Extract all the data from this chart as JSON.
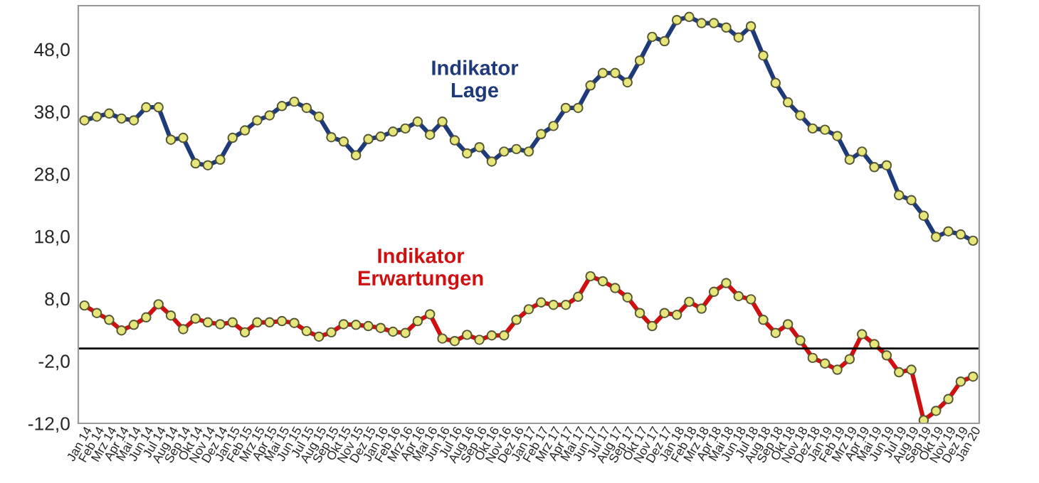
{
  "chart_data": {
    "type": "line",
    "categories": [
      "Jan 14",
      "Feb 14",
      "Mrz 14",
      "Apr 14",
      "Mai 14",
      "Jun 14",
      "Jul 14",
      "Aug 14",
      "Sep 14",
      "Okt 14",
      "Nov 14",
      "Dez 14",
      "Jan 15",
      "Feb 15",
      "Mrz 15",
      "Apr 15",
      "Mai 15",
      "Jun 15",
      "Jul 15",
      "Aug 15",
      "Sep 15",
      "Okt 15",
      "Nov 15",
      "Dez 15",
      "Jan 16",
      "Feb 16",
      "Mrz 16",
      "Apr 16",
      "Mai 16",
      "Jun 16",
      "Jul 16",
      "Aug 16",
      "Sep 16",
      "Okt 16",
      "Nov 16",
      "Dez 16",
      "Jan 17",
      "Feb 17",
      "Mrz 17",
      "Apr 17",
      "Mai 17",
      "Jun 17",
      "Jul 17",
      "Aug 17",
      "Sep 17",
      "Okt 17",
      "Nov 17",
      "Dez 17",
      "Jan 18",
      "Feb 18",
      "Mrz 18",
      "Apr 18",
      "Mai 18",
      "Jun 18",
      "Jul 18",
      "Aug 18",
      "Sep 18",
      "Okt 18",
      "Nov 18",
      "Dez 18",
      "Jan 19",
      "Feb 19",
      "Mrz 19",
      "Apr 19",
      "Mai 19",
      "Jun 19",
      "Jul 19",
      "Aug 19",
      "Sep 19",
      "Okt 19",
      "Nov 19",
      "Dez 19",
      "Jan 20"
    ],
    "series": [
      {
        "name": "Indikator\nLage",
        "color": "#1f3a7a",
        "values": [
          36.6,
          37.2,
          37.7,
          36.9,
          36.6,
          38.7,
          38.7,
          33.5,
          33.8,
          29.7,
          29.4,
          30.3,
          33.8,
          35.0,
          36.6,
          37.4,
          38.9,
          39.6,
          38.6,
          37.2,
          33.9,
          33.2,
          31.0,
          33.6,
          34.0,
          34.8,
          35.3,
          36.4,
          34.3,
          36.4,
          33.4,
          31.3,
          32.3,
          30.0,
          31.6,
          32.0,
          31.6,
          34.4,
          35.7,
          38.6,
          38.6,
          42.2,
          44.2,
          44.2,
          42.7,
          46.2,
          50.0,
          49.3,
          52.7,
          53.2,
          52.2,
          52.2,
          51.5,
          49.9,
          51.7,
          47.0,
          42.6,
          39.5,
          37.4,
          35.3,
          35.1,
          34.1,
          30.3,
          31.6,
          29.1,
          29.4,
          24.6,
          23.8,
          21.3,
          17.9,
          18.8,
          18.3,
          17.3
        ]
      },
      {
        "name": "Indikator\nErwartungen",
        "color": "#d01010",
        "values": [
          6.9,
          5.7,
          4.6,
          2.9,
          3.8,
          5.0,
          7.1,
          5.3,
          3.1,
          4.8,
          4.2,
          3.9,
          4.2,
          2.6,
          4.2,
          4.2,
          4.4,
          4.1,
          2.8,
          1.9,
          2.6,
          3.9,
          3.8,
          3.6,
          3.3,
          2.7,
          2.5,
          4.4,
          5.5,
          1.6,
          1.2,
          2.2,
          1.4,
          2.1,
          2.1,
          4.6,
          6.3,
          7.4,
          7.0,
          7.0,
          8.3,
          11.6,
          10.8,
          9.7,
          8.2,
          5.7,
          3.6,
          5.7,
          5.4,
          7.5,
          6.4,
          9.1,
          10.5,
          8.4,
          7.9,
          4.6,
          2.5,
          3.9,
          1.3,
          -1.5,
          -2.4,
          -3.4,
          -1.7,
          2.3,
          0.7,
          -1.1,
          -3.8,
          -3.4,
          -11.5,
          -10.0,
          -8.1,
          -5.3,
          -4.5
        ]
      }
    ],
    "ylim": [
      -12,
      55
    ],
    "yticks": [
      {
        "value": -12,
        "label": "-12,0"
      },
      {
        "value": -2,
        "label": "-2,0"
      },
      {
        "value": 8,
        "label": "8,0"
      },
      {
        "value": 18,
        "label": "18,0"
      },
      {
        "value": 28,
        "label": "28,0"
      },
      {
        "value": 38,
        "label": "38,0"
      },
      {
        "value": 48,
        "label": "48,0"
      }
    ],
    "ref_lines": [
      {
        "axis": "y",
        "value": 0,
        "color": "#000000"
      }
    ],
    "marker": "circle",
    "line_style": "solid",
    "grid": false,
    "legend": false
  }
}
